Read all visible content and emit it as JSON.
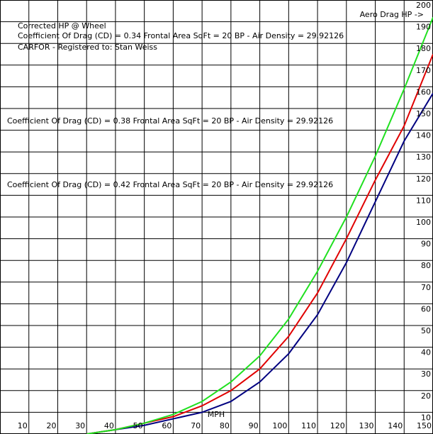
{
  "chart_data": {
    "type": "line",
    "title": "Corrected HP @ Wheel",
    "subtitle": "CARFOR - Registered to:    Stan Weiss",
    "y_label": "Aero Drag HP ->",
    "x_label": "MPH",
    "x": [
      30,
      40,
      50,
      60,
      70,
      80,
      90,
      100,
      110,
      120,
      130,
      140,
      150
    ],
    "series": [
      {
        "name": "Coefficient Of Drag (CD) = 0.34   Frontal Area SqFt = 20   BP - Air Density = 29.92126",
        "color": "#000080",
        "values": [
          0,
          2,
          4,
          7,
          10,
          15,
          24,
          37,
          55,
          79,
          107,
          135,
          157
        ]
      },
      {
        "name": "Coefficient Of Drag (CD) = 0.38   Frontal Area SqFt = 20   BP - Air Density = 29.92126",
        "color": "#e00000",
        "values": [
          0,
          2,
          5,
          8,
          13,
          20,
          30,
          45,
          65,
          90,
          117,
          142,
          175
        ]
      },
      {
        "name": "Coefficient Of Drag (CD) = 0.42   Frontal Area SqFt = 20   BP - Air Density = 29.92126",
        "color": "#20e020",
        "values": [
          0,
          2,
          5,
          9,
          15,
          24,
          36,
          53,
          75,
          100,
          128,
          159,
          192
        ]
      }
    ],
    "xlim": [
      0,
      150
    ],
    "ylim": [
      0,
      200
    ],
    "xticks": [
      10,
      20,
      30,
      40,
      50,
      60,
      70,
      80,
      90,
      100,
      110,
      120,
      130,
      140,
      150
    ],
    "yticks": [
      10,
      20,
      30,
      40,
      50,
      60,
      70,
      80,
      90,
      100,
      110,
      120,
      130,
      140,
      150,
      160,
      170,
      180,
      190,
      200
    ],
    "grid": true
  }
}
